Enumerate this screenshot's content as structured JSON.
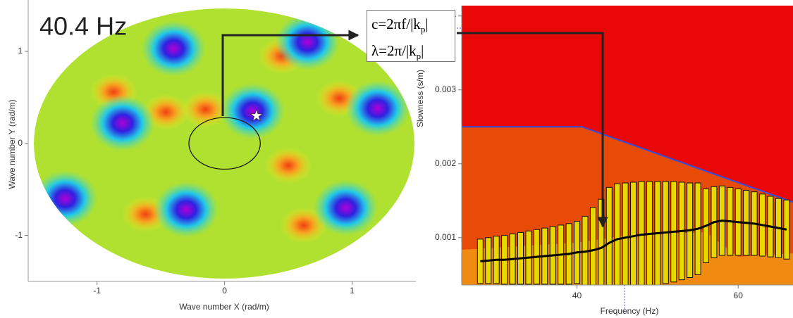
{
  "chart_data": [
    {
      "type": "contour",
      "title": "40.4 Hz",
      "xlabel": "Wave number X (rad/m)",
      "ylabel": "Wave number Y (rad/m)",
      "xlim": [
        -1.54,
        1.5
      ],
      "ylim": [
        -1.5,
        1.52
      ],
      "xticks": [
        -1,
        0,
        1
      ],
      "yticks": [
        -1,
        0,
        1
      ],
      "maxima": {
        "x": [
          -0.8,
          -0.4,
          0.65,
          0.22,
          1.2,
          -1.25,
          -0.3,
          0.95
        ],
        "y": [
          0.22,
          1.03,
          1.1,
          0.35,
          0.38,
          -0.6,
          -0.72,
          -0.7
        ]
      },
      "minima": {
        "x": [
          -0.46,
          -0.15,
          0.45,
          0.62,
          0.5,
          -0.62,
          0.9,
          -0.87
        ],
        "y": [
          0.34,
          0.37,
          0.95,
          -0.89,
          -0.24,
          -0.77,
          0.49,
          0.56
        ]
      },
      "picked": {
        "x": 0.25,
        "y": 0.3
      },
      "circle_radius": 0.28,
      "formula": [
        {
          "text": "c=2πf/|k",
          "sub": "p",
          "tail": "|"
        },
        {
          "text": "λ=2π/|k",
          "sub": "p",
          "tail": "|"
        }
      ]
    },
    {
      "type": "errorbar",
      "xlabel": "Frequency (Hz)",
      "ylabel": "Slowness (s/m)",
      "xlim": [
        25.7,
        66.8
      ],
      "ylim": [
        0.00036,
        0.00414
      ],
      "xticks": [
        40,
        60
      ],
      "yticks": [
        0.001,
        0.002,
        0.003,
        0.004
      ],
      "limit": {
        "x": [
          25.7,
          40.6,
          66.8
        ],
        "values": [
          0.0025,
          0.0025,
          0.00148
        ]
      },
      "x": [
        28,
        29,
        30,
        31,
        32,
        33,
        34,
        35,
        36,
        37,
        38,
        39,
        40,
        41,
        42,
        43,
        44,
        45,
        46,
        47,
        48,
        49,
        50,
        51,
        52,
        53,
        54,
        55,
        56,
        57,
        58,
        59,
        60,
        61,
        62,
        63,
        64,
        65,
        66
      ],
      "values": [
        0.00068,
        0.00069,
        0.0007,
        0.0007,
        0.00071,
        0.00072,
        0.00073,
        0.00074,
        0.00075,
        0.00076,
        0.00077,
        0.00078,
        0.0008,
        0.00081,
        0.00083,
        0.00086,
        0.00093,
        0.00098,
        0.001,
        0.00102,
        0.00104,
        0.00105,
        0.00106,
        0.00107,
        0.00108,
        0.00109,
        0.0011,
        0.00112,
        0.00116,
        0.00121,
        0.00123,
        0.00122,
        0.00121,
        0.0012,
        0.00119,
        0.00117,
        0.00115,
        0.00113,
        0.00111
      ],
      "errors": [
        0.0003,
        0.00031,
        0.00032,
        0.00033,
        0.00034,
        0.00035,
        0.00036,
        0.00037,
        0.00038,
        0.00039,
        0.0004,
        0.00041,
        0.00042,
        0.00048,
        0.00058,
        0.00066,
        0.00075,
        0.00075,
        0.00074,
        0.00073,
        0.00072,
        0.00071,
        0.0007,
        0.00069,
        0.00068,
        0.00066,
        0.00064,
        0.00062,
        0.0005,
        0.00048,
        0.00047,
        0.00046,
        0.00045,
        0.00044,
        0.00043,
        0.00042,
        0.00041,
        0.0004,
        0.0004
      ]
    }
  ]
}
